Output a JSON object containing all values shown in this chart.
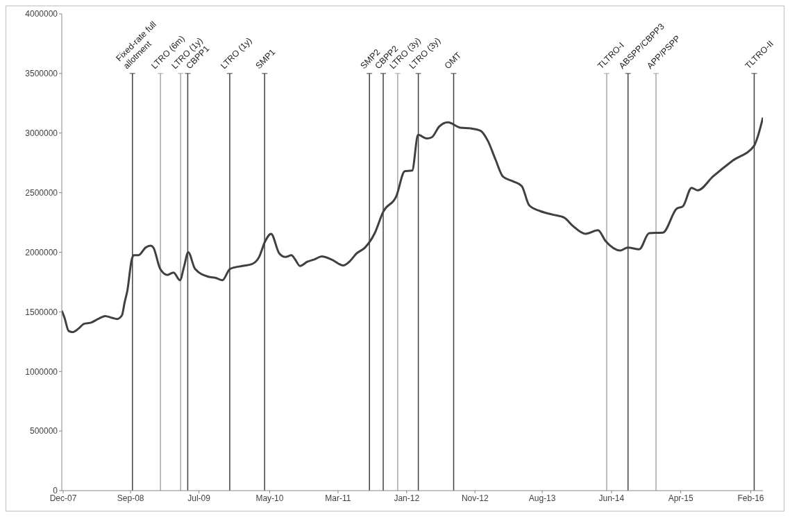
{
  "chart_data": {
    "type": "line",
    "xlim": [
      "2007-12-05",
      "2016-04-17"
    ],
    "xticks": [
      {
        "value": "2007-12-11",
        "label": "Dec-07"
      },
      {
        "value": "2008-09-30",
        "label": "Sep-08"
      },
      {
        "value": "2009-07-25",
        "label": "Jul-09"
      },
      {
        "value": "2010-05-29",
        "label": "May-10"
      },
      {
        "value": "2011-03-23",
        "label": "Mar-11"
      },
      {
        "value": "2012-01-16",
        "label": "Jan-12"
      },
      {
        "value": "2012-11-09",
        "label": "Nov-12"
      },
      {
        "value": "2013-08-29",
        "label": "Aug-13"
      },
      {
        "value": "2014-06-27",
        "label": "Jun-14"
      },
      {
        "value": "2015-04-25",
        "label": "Apr-15"
      },
      {
        "value": "2016-02-24",
        "label": "Feb-16"
      }
    ],
    "ylim": [
      0,
      4000000
    ],
    "yticks": [
      0,
      500000,
      1000000,
      1500000,
      2000000,
      2500000,
      3000000,
      3500000,
      4000000
    ],
    "grid": false,
    "legend": false,
    "x": [
      "2007-12-05",
      "2007-12-17",
      "2008-01-04",
      "2008-01-22",
      "2008-02-16",
      "2008-03-11",
      "2008-04-11",
      "2008-05-11",
      "2008-06-11",
      "2008-07-11",
      "2008-08-02",
      "2008-08-23",
      "2008-09-04",
      "2008-09-16",
      "2008-10-05",
      "2008-10-13",
      "2008-11-03",
      "2008-12-05",
      "2008-12-26",
      "2009-01-07",
      "2009-02-06",
      "2009-03-09",
      "2009-04-05",
      "2009-05-03",
      "2009-05-21",
      "2009-06-08",
      "2009-07-08",
      "2009-09-04",
      "2009-10-06",
      "2009-11-04",
      "2009-12-07",
      "2010-01-29",
      "2010-03-12",
      "2010-04-13",
      "2010-05-09",
      "2010-06-04",
      "2010-07-10",
      "2010-08-06",
      "2010-09-01",
      "2010-09-17",
      "2010-10-08",
      "2010-11-09",
      "2010-12-10",
      "2011-01-11",
      "2011-02-22",
      "2011-04-15",
      "2011-05-11",
      "2011-06-12",
      "2011-07-19",
      "2011-08-30",
      "2011-10-06",
      "2011-12-02",
      "2012-01-08",
      "2012-02-09",
      "2012-03-06",
      "2012-04-13",
      "2012-05-05",
      "2012-06-06",
      "2012-07-14",
      "2012-09-07",
      "2012-10-20",
      "2012-12-03",
      "2013-01-04",
      "2013-02-06",
      "2013-03-11",
      "2013-04-24",
      "2013-06-01",
      "2013-07-03",
      "2013-08-21",
      "2013-10-15",
      "2013-12-03",
      "2014-01-10",
      "2014-03-05",
      "2014-04-29",
      "2014-06-01",
      "2014-08-05",
      "2014-09-06",
      "2014-10-26",
      "2014-12-08",
      "2015-02-06",
      "2015-04-07",
      "2015-05-04",
      "2015-06-11",
      "2015-07-08",
      "2015-09-12",
      "2015-12-08",
      "2016-03-10",
      "2016-03-27",
      "2016-04-17"
    ],
    "series": [
      {
        "color": "#404040",
        "values": [
          1510000,
          1450000,
          1340000,
          1330000,
          1360000,
          1400000,
          1410000,
          1440000,
          1465000,
          1450000,
          1440000,
          1470000,
          1580000,
          1680000,
          1940000,
          1975000,
          1975000,
          2040000,
          2055000,
          2040000,
          1860000,
          1810000,
          1830000,
          1765000,
          1880000,
          2000000,
          1860000,
          1795000,
          1785000,
          1765000,
          1860000,
          1885000,
          1900000,
          1960000,
          2090000,
          2155000,
          1990000,
          1960000,
          1975000,
          1940000,
          1885000,
          1920000,
          1940000,
          1965000,
          1940000,
          1890000,
          1920000,
          1990000,
          2040000,
          2160000,
          2340000,
          2470000,
          2680000,
          2685000,
          2985000,
          2955000,
          2965000,
          3055000,
          3090000,
          3045000,
          3040000,
          3020000,
          2935000,
          2780000,
          2635000,
          2595000,
          2555000,
          2395000,
          2345000,
          2315000,
          2290000,
          2220000,
          2155000,
          2185000,
          2095000,
          2015000,
          2040000,
          2025000,
          2160000,
          2165000,
          2365000,
          2385000,
          2540000,
          2520000,
          2635000,
          2770000,
          2895000,
          2980000,
          3130000
        ]
      }
    ],
    "ref_lines": [
      {
        "axis": "x",
        "value": "2008-10-08",
        "label": "Fixed-rate full allotment",
        "color": "#404040"
      },
      {
        "axis": "x",
        "value": "2009-02-07",
        "label": "LTRO (6m)",
        "color": "#a6a6a6"
      },
      {
        "axis": "x",
        "value": "2009-05-06",
        "label": "LTRO (1y)",
        "color": "#a6a6a6"
      },
      {
        "axis": "x",
        "value": "2009-06-06",
        "label": "CBPP1",
        "color": "#404040"
      },
      {
        "axis": "x",
        "value": "2009-12-06",
        "label": "LTRO (1y)",
        "color": "#404040"
      },
      {
        "axis": "x",
        "value": "2010-05-07",
        "label": "SMP1",
        "color": "#404040"
      },
      {
        "axis": "x",
        "value": "2011-08-07",
        "label": "SMP2",
        "color": "#404040"
      },
      {
        "axis": "x",
        "value": "2011-10-06",
        "label": "CBPP2",
        "color": "#404040"
      },
      {
        "axis": "x",
        "value": "2011-12-08",
        "label": "LTRO (3y)",
        "color": "#a6a6a6"
      },
      {
        "axis": "x",
        "value": "2012-03-07",
        "label": "LTRO (3y)",
        "color": "#404040"
      },
      {
        "axis": "x",
        "value": "2012-08-08",
        "label": "OMT",
        "color": "#404040"
      },
      {
        "axis": "x",
        "value": "2014-06-06",
        "label": "TLTRO-I",
        "color": "#a6a6a6"
      },
      {
        "axis": "x",
        "value": "2014-09-07",
        "label": "ABSPP/CBPP3",
        "color": "#404040"
      },
      {
        "axis": "x",
        "value": "2015-01-07",
        "label": "APP/PSPP",
        "color": "#a6a6a6"
      },
      {
        "axis": "x",
        "value": "2016-03-10",
        "label": "TLTRO-II",
        "color": "#404040"
      }
    ]
  }
}
